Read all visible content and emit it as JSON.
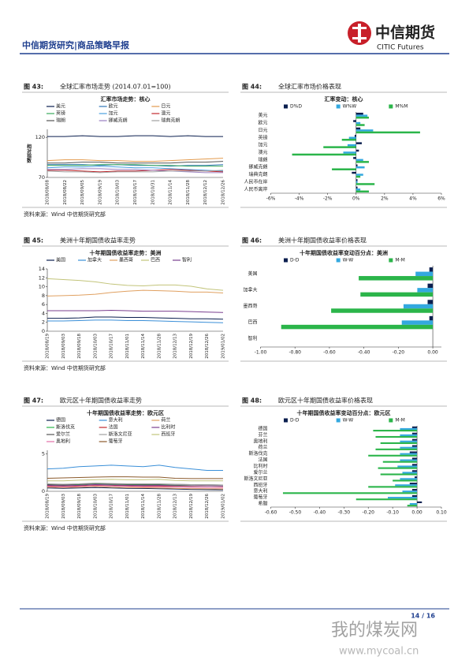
{
  "header": {
    "title": "中信期货研究|商品策略早报",
    "logo_cn": "中信期货",
    "logo_en": "CITIC Futures"
  },
  "chart_data": [
    {
      "type": "line",
      "label": "图 43:",
      "title": "全球汇率市场走势 (2014.07.01=100)",
      "chart_title": "汇率市场走势：核心",
      "ylabel": "相对指数",
      "source": "资料来源：Wind  中信期货研究部",
      "categories": [
        "2018/08/08",
        "2018/08/22",
        "2018/09/05",
        "2018/09/19",
        "2018/10/03",
        "2018/10/17",
        "2018/10/31",
        "2018/11/14",
        "2018/11/28",
        "2018/12/12",
        "2018/12/26"
      ],
      "ylim": [
        70,
        130
      ],
      "yticks": [
        70,
        120
      ],
      "series": [
        {
          "name": "美元",
          "color": "#0b1f4f",
          "values": [
            121,
            121,
            122,
            121,
            121,
            122,
            122,
            121,
            122,
            121,
            121
          ]
        },
        {
          "name": "欧元",
          "color": "#2e75b6",
          "values": [
            86,
            86,
            86,
            85,
            86,
            85,
            85,
            84,
            85,
            85,
            86
          ]
        },
        {
          "name": "日元",
          "color": "#e39a4c",
          "values": [
            91,
            92,
            92,
            91,
            91,
            90,
            90,
            91,
            92,
            93,
            94
          ]
        },
        {
          "name": "英镑",
          "color": "#3aaa5c",
          "values": [
            85,
            85,
            85,
            86,
            86,
            86,
            85,
            85,
            84,
            84,
            84
          ]
        },
        {
          "name": "加元",
          "color": "#4a9fe0",
          "values": [
            82,
            83,
            83,
            84,
            83,
            82,
            82,
            81,
            80,
            79,
            78
          ]
        },
        {
          "name": "澳元",
          "color": "#c0282d",
          "values": [
            79,
            79,
            78,
            77,
            78,
            78,
            79,
            80,
            79,
            78,
            77
          ]
        },
        {
          "name": "瑞朗",
          "color": "#555555",
          "values": [
            88,
            88,
            89,
            89,
            88,
            88,
            88,
            88,
            89,
            89,
            90
          ]
        },
        {
          "name": "挪威克朗",
          "color": "#9a7fc0",
          "values": [
            80,
            80,
            81,
            81,
            80,
            80,
            79,
            78,
            77,
            76,
            76
          ]
        },
        {
          "name": "瑞典克朗",
          "color": "#a0a0a0",
          "values": [
            78,
            77,
            77,
            76,
            77,
            77,
            77,
            78,
            78,
            78,
            79
          ]
        }
      ]
    },
    {
      "type": "hbar",
      "label": "图 44:",
      "title": "全球汇率市场价格表现",
      "chart_title": "汇率变动：核心",
      "source": "",
      "categories": [
        "美元",
        "欧元",
        "日元",
        "英镑",
        "加元",
        "澳元",
        "瑞朗",
        "挪威克朗",
        "瑞典克朗",
        "人民币在岸",
        "人民币离岸"
      ],
      "xlim": [
        -6,
        6
      ],
      "xticks": [
        {
          "value": -6,
          "label": "-6%"
        },
        {
          "value": -4,
          "label": "-4%"
        },
        {
          "value": -2,
          "label": "-2%"
        },
        {
          "value": 0,
          "label": "0%"
        },
        {
          "value": 2,
          "label": "2%"
        },
        {
          "value": 4,
          "label": "4%"
        },
        {
          "value": 6,
          "label": "6%"
        }
      ],
      "series": [
        {
          "name": "D%D",
          "color": "#0b1f4f",
          "values": [
            0.5,
            -0.2,
            0.3,
            -0.1,
            0.4,
            0.2,
            -0.2,
            0.1,
            -0.3,
            0.1,
            0.1
          ]
        },
        {
          "name": "W%W",
          "color": "#33a8df",
          "values": [
            0.8,
            0.3,
            1.2,
            -0.5,
            -0.6,
            -0.9,
            0.5,
            0.6,
            0.5,
            0.1,
            0.3
          ]
        },
        {
          "name": "M%M",
          "color": "#2bb54a",
          "values": [
            0.9,
            0.6,
            4.5,
            -1.0,
            -2.3,
            -4.5,
            0.9,
            -1.7,
            0.3,
            1.3,
            0.9
          ]
        }
      ]
    },
    {
      "type": "line",
      "label": "图 45:",
      "title": "美洲十年期国债收益率走势",
      "chart_title": "十年期国债收益率走势：美洲",
      "source": "资料来源：Wind  中信期货研究部",
      "categories": [
        "2018/08/19",
        "2018/09/03",
        "2018/09/18",
        "2018/10/03",
        "2018/10/17",
        "2018/11/01",
        "2018/11/14",
        "2018/11/28",
        "2018/12/13",
        "2018/12/19",
        "2018/12/26",
        "2019/01/02"
      ],
      "ylim": [
        0,
        14
      ],
      "yticks": [
        0,
        2,
        4,
        6,
        8,
        10,
        12,
        14
      ],
      "series": [
        {
          "name": "美国",
          "color": "#0b1f4f",
          "values": [
            2.9,
            2.9,
            3.0,
            3.2,
            3.2,
            3.1,
            3.1,
            3.0,
            2.9,
            2.8,
            2.8,
            2.7
          ]
        },
        {
          "name": "加拿大",
          "color": "#3a8fd8",
          "values": [
            2.3,
            2.3,
            2.4,
            2.5,
            2.5,
            2.4,
            2.4,
            2.3,
            2.2,
            2.1,
            2.0,
            1.9
          ]
        },
        {
          "name": "墨西哥",
          "color": "#e0a060",
          "values": [
            7.9,
            8.0,
            8.1,
            8.3,
            8.7,
            9.0,
            9.2,
            9.1,
            9.0,
            8.8,
            8.8,
            8.6
          ]
        },
        {
          "name": "巴西",
          "color": "#c2c47a",
          "values": [
            11.8,
            11.6,
            11.4,
            11.1,
            10.6,
            10.3,
            10.2,
            10.4,
            10.4,
            10.1,
            9.5,
            9.2
          ]
        },
        {
          "name": "智利",
          "color": "#7a3f8f",
          "values": [
            4.6,
            4.6,
            4.6,
            4.6,
            4.7,
            4.6,
            4.5,
            4.5,
            4.5,
            4.4,
            4.3,
            4.2
          ]
        }
      ]
    },
    {
      "type": "hbar",
      "label": "图 46:",
      "title": "美洲十年期国债收益率价格表现",
      "chart_title": "十年期国债收益率变动百分点：美洲",
      "source": "",
      "categories": [
        "美国",
        "加拿大",
        "墨西哥",
        "巴西",
        "智利"
      ],
      "xlim": [
        -1,
        0.05
      ],
      "xticks": [
        {
          "value": -1,
          "label": "-1.00"
        },
        {
          "value": -0.8,
          "label": "-0.80"
        },
        {
          "value": -0.6,
          "label": "-0.60"
        },
        {
          "value": -0.4,
          "label": "-0.40"
        },
        {
          "value": -0.2,
          "label": "-0.20"
        },
        {
          "value": 0,
          "label": "0.00"
        }
      ],
      "series": [
        {
          "name": "D-D",
          "color": "#0b1f4f",
          "values": [
            -0.02,
            -0.03,
            -0.03,
            -0.02,
            0
          ]
        },
        {
          "name": "W-W",
          "color": "#33a8df",
          "values": [
            -0.1,
            -0.09,
            -0.17,
            -0.18,
            0
          ]
        },
        {
          "name": "M-M",
          "color": "#2bb54a",
          "values": [
            -0.43,
            -0.42,
            -0.59,
            -0.88,
            0
          ]
        }
      ]
    },
    {
      "type": "line",
      "label": "图 47:",
      "title": "欧元区十年期国债收益率走势",
      "chart_title": "十年期国债收益率走势：欧元区",
      "source": "资料来源：Wind  中信期货研究部",
      "categories": [
        "2018/08/19",
        "2018/09/03",
        "2018/09/18",
        "2018/10/03",
        "2018/10/17",
        "2018/11/01",
        "2018/11/14",
        "2018/11/28",
        "2018/12/13",
        "2018/12/19",
        "2018/12/26",
        "2019/01/02"
      ],
      "ylim": [
        0,
        5.5
      ],
      "yticks": [
        0,
        5
      ],
      "series": [
        {
          "name": "德国",
          "color": "#0b1f4f",
          "values": [
            0.45,
            0.4,
            0.45,
            0.5,
            0.45,
            0.4,
            0.38,
            0.35,
            0.3,
            0.25,
            0.22,
            0.2
          ]
        },
        {
          "name": "意大利",
          "color": "#3a8fd8",
          "values": [
            3.0,
            3.1,
            3.3,
            3.4,
            3.5,
            3.4,
            3.3,
            3.5,
            3.2,
            3.0,
            2.8,
            2.8
          ]
        },
        {
          "name": "荷兰",
          "color": "#e0a060",
          "values": [
            0.55,
            0.5,
            0.55,
            0.65,
            0.55,
            0.5,
            0.48,
            0.45,
            0.4,
            0.35,
            0.33,
            0.3
          ]
        },
        {
          "name": "斯洛伐克",
          "color": "#2bb54a",
          "values": [
            0.9,
            0.85,
            0.9,
            1.0,
            0.95,
            0.9,
            0.85,
            0.85,
            0.8,
            0.75,
            0.7,
            0.7
          ]
        },
        {
          "name": "法国",
          "color": "#c0282d",
          "values": [
            0.75,
            0.7,
            0.75,
            0.85,
            0.8,
            0.75,
            0.72,
            0.72,
            0.7,
            0.68,
            0.7,
            0.65
          ]
        },
        {
          "name": "比利时",
          "color": "#7a3f8f",
          "values": [
            0.8,
            0.75,
            0.8,
            0.9,
            0.85,
            0.8,
            0.78,
            0.8,
            0.75,
            0.73,
            0.72,
            0.7
          ]
        },
        {
          "name": "爱尔兰",
          "color": "#555555",
          "values": [
            0.9,
            0.85,
            0.95,
            1.05,
            1.0,
            0.95,
            0.92,
            0.95,
            0.92,
            0.9,
            0.88,
            0.85
          ]
        },
        {
          "name": "斯洛文尼亚",
          "color": "#a0a0a0",
          "values": [
            1.0,
            0.95,
            1.0,
            1.1,
            1.05,
            1.0,
            1.0,
            1.0,
            0.95,
            0.9,
            0.88,
            0.85
          ]
        },
        {
          "name": "西班牙",
          "color": "#c2c47a",
          "values": [
            1.4,
            1.4,
            1.5,
            1.55,
            1.6,
            1.55,
            1.55,
            1.6,
            1.45,
            1.4,
            1.4,
            1.4
          ]
        },
        {
          "name": "奥地利",
          "color": "#e36fa8",
          "values": [
            0.65,
            0.6,
            0.65,
            0.75,
            0.7,
            0.65,
            0.6,
            0.6,
            0.55,
            0.5,
            0.48,
            0.45
          ]
        },
        {
          "name": "葡萄牙",
          "color": "#8b5a2b",
          "values": [
            1.75,
            1.8,
            1.85,
            1.9,
            1.95,
            1.95,
            1.9,
            1.9,
            1.75,
            1.7,
            1.7,
            1.7
          ]
        }
      ]
    },
    {
      "type": "hbar",
      "label": "图 48:",
      "title": "欧元区十年期国债收益率价格表现",
      "chart_title": "十年期国债收益率变动百分点：欧元区",
      "source": "",
      "categories": [
        "德国",
        "芬兰",
        "奥地利",
        "荷兰",
        "斯洛伐克",
        "法国",
        "比利时",
        "爱尔兰",
        "斯洛文尼亚",
        "西班牙",
        "意大利",
        "葡萄牙",
        "希腊"
      ],
      "xlim": [
        -0.6,
        0.1
      ],
      "xticks": [
        {
          "value": -0.6,
          "label": "-0.60"
        },
        {
          "value": -0.5,
          "label": "-0.50"
        },
        {
          "value": -0.4,
          "label": "-0.40"
        },
        {
          "value": -0.3,
          "label": "-0.30"
        },
        {
          "value": -0.2,
          "label": "-0.20"
        },
        {
          "value": -0.1,
          "label": "-0.10"
        },
        {
          "value": 0,
          "label": "0.00"
        },
        {
          "value": 0.1,
          "label": "0.10"
        }
      ],
      "series": [
        {
          "name": "D-D",
          "color": "#0b1f4f",
          "values": [
            -0.02,
            -0.02,
            -0.02,
            -0.02,
            -0.03,
            -0.02,
            -0.02,
            -0.02,
            -0.01,
            -0.03,
            -0.02,
            -0.02,
            0.02
          ]
        },
        {
          "name": "W-W",
          "color": "#33a8df",
          "values": [
            -0.07,
            -0.07,
            -0.07,
            -0.07,
            -0.07,
            -0.07,
            -0.08,
            -0.06,
            -0.07,
            -0.09,
            -0.06,
            -0.12,
            -0.03
          ]
        },
        {
          "name": "M-M",
          "color": "#2bb54a",
          "values": [
            -0.18,
            -0.17,
            -0.15,
            -0.17,
            -0.2,
            -0.14,
            -0.16,
            -0.15,
            -0.1,
            -0.2,
            -0.55,
            -0.25,
            -0.04
          ]
        }
      ]
    }
  ],
  "footer": {
    "page": "14 / 16"
  },
  "watermark": {
    "cn": "我的煤炭网",
    "url": "www.mycoal.cn"
  }
}
